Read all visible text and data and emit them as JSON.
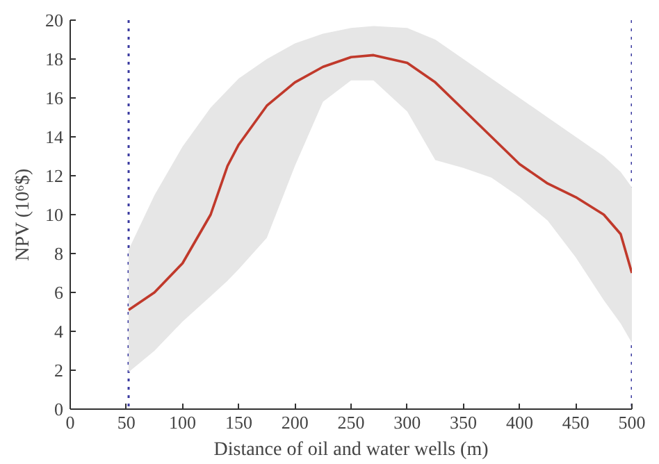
{
  "chart_data": {
    "type": "line",
    "xlabel": "Distance of oil and water wells (m)",
    "ylabel": "NPV (10⁶$)",
    "xlim": [
      0,
      500
    ],
    "ylim": [
      0,
      20
    ],
    "xticks": [
      0,
      50,
      100,
      150,
      200,
      250,
      300,
      350,
      400,
      450,
      500
    ],
    "yticks": [
      0,
      2,
      4,
      6,
      8,
      10,
      12,
      14,
      16,
      18,
      20
    ],
    "grid": false,
    "marker": "none",
    "line_style": "solid",
    "series": [
      {
        "color": "#c0392b",
        "x": [
          52,
          75,
          100,
          125,
          140,
          150,
          175,
          200,
          225,
          250,
          270,
          300,
          325,
          350,
          375,
          400,
          425,
          450,
          475,
          490,
          500
        ],
        "values": [
          5.1,
          6.0,
          7.5,
          10.0,
          12.5,
          13.6,
          15.6,
          16.8,
          17.6,
          18.1,
          18.2,
          17.8,
          16.8,
          15.4,
          14.0,
          12.6,
          11.6,
          10.9,
          10.0,
          9.0,
          7.0
        ],
        "lower": [
          1.9,
          3.0,
          4.5,
          5.8,
          6.6,
          7.2,
          8.8,
          12.5,
          15.8,
          16.9,
          16.9,
          15.3,
          12.8,
          12.4,
          11.9,
          10.9,
          9.7,
          7.8,
          5.6,
          4.4,
          3.4
        ],
        "upper": [
          8.2,
          11.0,
          13.5,
          15.5,
          16.4,
          17.0,
          18.0,
          18.8,
          19.3,
          19.6,
          19.7,
          19.6,
          19.0,
          18.0,
          17.0,
          16.0,
          15.0,
          14.0,
          13.0,
          12.2,
          11.4
        ]
      }
    ],
    "ref_lines": [
      {
        "axis": "x",
        "value": 52,
        "color": "#3a3aa0",
        "line_style": "dotted"
      },
      {
        "axis": "x",
        "value": 500,
        "color": "#3a3aa0",
        "line_style": "dotted"
      }
    ]
  }
}
